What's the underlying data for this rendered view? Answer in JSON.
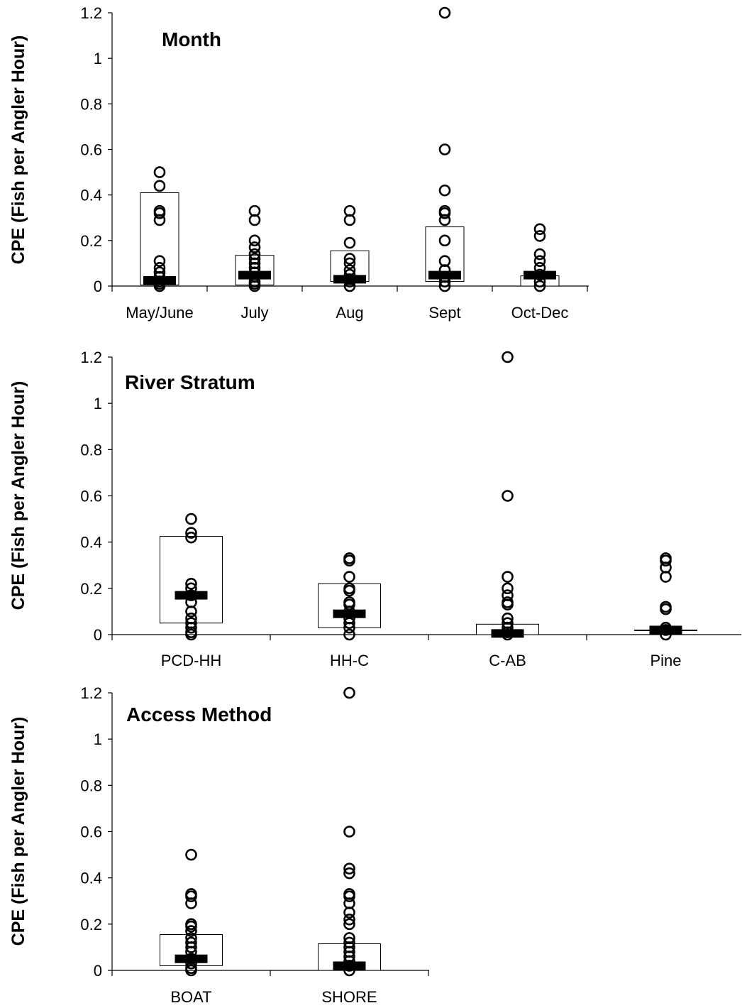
{
  "chart_data": [
    {
      "type": "scatter",
      "title": "Month",
      "ylabel": "CPE (Fish per Angler Hour)",
      "xlabel": "",
      "ylim": [
        0,
        1.2
      ],
      "yticks": [
        "0",
        "0.2",
        "0.4",
        "0.6",
        "0.8",
        "1",
        "1.2"
      ],
      "yticks_values": [
        0,
        0.2,
        0.4,
        0.6,
        0.8,
        1,
        1.2
      ],
      "categories": [
        "May/June",
        "July",
        "Aug",
        "Sept",
        "Oct-Dec"
      ],
      "boxes": [
        {
          "low": 0.005,
          "high": 0.41,
          "median": 0.025
        },
        {
          "low": 0.005,
          "high": 0.135,
          "median": 0.048
        },
        {
          "low": 0.02,
          "high": 0.155,
          "median": 0.03
        },
        {
          "low": 0.02,
          "high": 0.26,
          "median": 0.048
        },
        {
          "low": 0.0,
          "high": 0.045,
          "median": 0.048
        }
      ],
      "points": [
        [
          0.5,
          0.44,
          0.33,
          0.32,
          0.29,
          0.11,
          0.08,
          0.06,
          0.04,
          0.02,
          0.01,
          0.0
        ],
        [
          0.33,
          0.29,
          0.2,
          0.17,
          0.14,
          0.12,
          0.1,
          0.08,
          0.06,
          0.04,
          0.02,
          0.01,
          0.0
        ],
        [
          0.33,
          0.29,
          0.19,
          0.12,
          0.1,
          0.07,
          0.05,
          0.03,
          0.02,
          0.0
        ],
        [
          1.2,
          0.6,
          0.42,
          0.33,
          0.32,
          0.29,
          0.2,
          0.11,
          0.07,
          0.04,
          0.02,
          0.0
        ],
        [
          0.25,
          0.22,
          0.14,
          0.11,
          0.08,
          0.05,
          0.02,
          0.0
        ]
      ]
    },
    {
      "type": "scatter",
      "title": "River Stratum",
      "ylabel": "CPE (Fish per Angler Hour)",
      "xlabel": "",
      "ylim": [
        0,
        1.2
      ],
      "yticks": [
        "0",
        "0.2",
        "0.4",
        "0.6",
        "0.8",
        "1",
        "1.2"
      ],
      "yticks_values": [
        0,
        0.2,
        0.4,
        0.6,
        0.8,
        1,
        1.2
      ],
      "categories": [
        "PCD-HH",
        "HH-C",
        "C-AB",
        "Pine"
      ],
      "boxes": [
        {
          "low": 0.05,
          "high": 0.425,
          "median": 0.17
        },
        {
          "low": 0.03,
          "high": 0.22,
          "median": 0.09
        },
        {
          "low": 0.0,
          "high": 0.045,
          "median": 0.005
        },
        {
          "low": 0.02,
          "high": 0.02,
          "median": 0.02
        }
      ],
      "points": [
        [
          0.5,
          0.44,
          0.42,
          0.22,
          0.2,
          0.17,
          0.14,
          0.1,
          0.07,
          0.05,
          0.03,
          0.01,
          0.0
        ],
        [
          0.33,
          0.32,
          0.25,
          0.2,
          0.19,
          0.14,
          0.13,
          0.1,
          0.07,
          0.05,
          0.03,
          0.0
        ],
        [
          1.2,
          0.6,
          0.25,
          0.2,
          0.17,
          0.14,
          0.13,
          0.07,
          0.05,
          0.03,
          0.01,
          0.0
        ],
        [
          0.33,
          0.32,
          0.29,
          0.25,
          0.12,
          0.11,
          0.03,
          0.02,
          0.0
        ]
      ]
    },
    {
      "type": "scatter",
      "title": "Access Method",
      "ylabel": "CPE (Fish per Angler Hour)",
      "xlabel": "",
      "ylim": [
        0,
        1.2
      ],
      "yticks": [
        "0",
        "0.2",
        "0.4",
        "0.6",
        "0.8",
        "1",
        "1.2"
      ],
      "yticks_values": [
        0,
        0.2,
        0.4,
        0.6,
        0.8,
        1,
        1.2
      ],
      "categories": [
        "BOAT",
        "SHORE"
      ],
      "boxes": [
        {
          "low": 0.02,
          "high": 0.155,
          "median": 0.05
        },
        {
          "low": 0.0,
          "high": 0.115,
          "median": 0.02
        }
      ],
      "points": [
        [
          0.5,
          0.33,
          0.32,
          0.29,
          0.2,
          0.19,
          0.17,
          0.14,
          0.12,
          0.1,
          0.08,
          0.05,
          0.03,
          0.01,
          0.0
        ],
        [
          1.2,
          0.6,
          0.44,
          0.42,
          0.33,
          0.32,
          0.29,
          0.25,
          0.22,
          0.2,
          0.14,
          0.12,
          0.1,
          0.08,
          0.06,
          0.04,
          0.02,
          0.0
        ]
      ]
    }
  ]
}
